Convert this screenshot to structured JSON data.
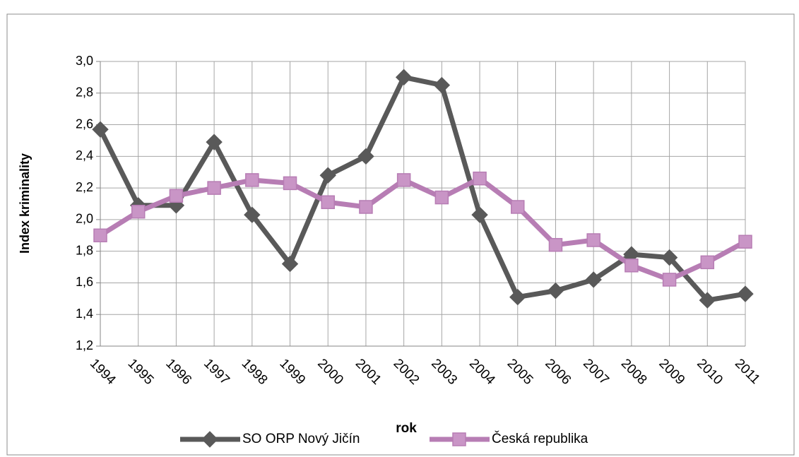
{
  "chart_data": {
    "type": "line",
    "ylabel": "Index kriminality",
    "xlabel": "rok",
    "categories": [
      "1994",
      "1995",
      "1996",
      "1997",
      "1998",
      "1999",
      "2000",
      "2001",
      "2002",
      "2003",
      "2004",
      "2005",
      "2006",
      "2007",
      "2008",
      "2009",
      "2010",
      "2011"
    ],
    "series": [
      {
        "name": "SO ORP Nový Jičín",
        "color": "#595959",
        "marker": "diamond",
        "values": [
          2.57,
          2.09,
          2.09,
          2.49,
          2.03,
          1.72,
          2.28,
          2.4,
          2.9,
          2.85,
          2.03,
          1.51,
          1.55,
          1.62,
          1.78,
          1.76,
          1.49,
          1.53
        ]
      },
      {
        "name": "Česká republika",
        "color": "#b77db4",
        "marker": "square",
        "values": [
          1.9,
          2.05,
          2.15,
          2.2,
          2.25,
          2.23,
          2.11,
          2.08,
          2.25,
          2.14,
          2.26,
          2.08,
          1.84,
          1.87,
          1.71,
          1.62,
          1.73,
          1.86
        ]
      }
    ],
    "ylim": [
      1.2,
      3.0
    ],
    "yticks": [
      {
        "value": 1.2,
        "label": "1,2"
      },
      {
        "value": 1.4,
        "label": "1,4"
      },
      {
        "value": 1.6,
        "label": "1,6"
      },
      {
        "value": 1.8,
        "label": "1,8"
      },
      {
        "value": 2.0,
        "label": "2,0"
      },
      {
        "value": 2.2,
        "label": "2,2"
      },
      {
        "value": 2.4,
        "label": "2,4"
      },
      {
        "value": 2.6,
        "label": "2,6"
      },
      {
        "value": 2.8,
        "label": "2,8"
      },
      {
        "value": 3.0,
        "label": "3,0"
      }
    ],
    "grid": true,
    "legend": "bottom"
  }
}
